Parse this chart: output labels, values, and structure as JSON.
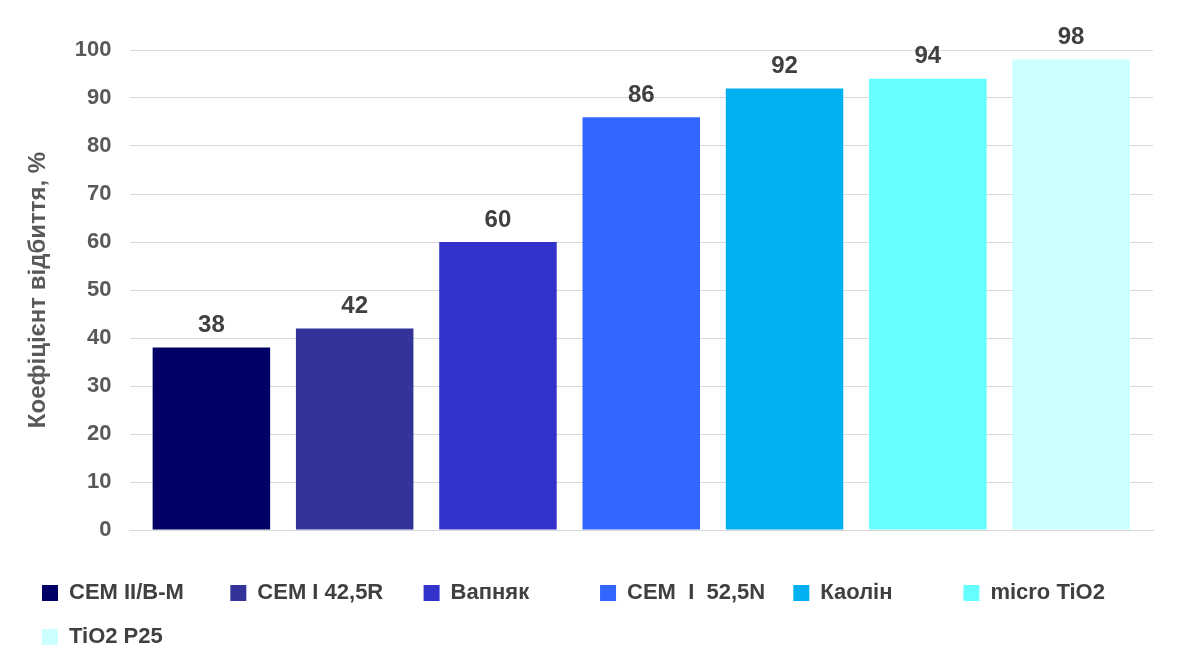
{
  "chart_data": {
    "type": "bar",
    "ylabel": "Коефіцієнт відбиття, %",
    "categories": [
      null
    ],
    "series": [
      {
        "name": "CEM II/B-M",
        "color": "#000066",
        "values": [
          38
        ]
      },
      {
        "name": "CEM I 42,5R",
        "color": "#333399",
        "values": [
          42
        ]
      },
      {
        "name": "Вапняк",
        "color": "#3333cc",
        "values": [
          60
        ]
      },
      {
        "name": "CEM  I  52,5N",
        "color": "#3366ff",
        "values": [
          86
        ]
      },
      {
        "name": "Каолін",
        "color": "#00b0f0",
        "values": [
          92
        ]
      },
      {
        "name": "micro TiO2",
        "color": "#66ffff",
        "values": [
          94
        ]
      },
      {
        "name": "TiO2 P25",
        "color": "#ccffff",
        "values": [
          98
        ]
      }
    ],
    "ylim": [
      0,
      100
    ],
    "yticks": [
      0,
      10,
      20,
      30,
      40,
      50,
      60,
      70,
      80,
      90,
      100
    ],
    "grid": "y",
    "legend": "bottom",
    "data_labels": true
  }
}
